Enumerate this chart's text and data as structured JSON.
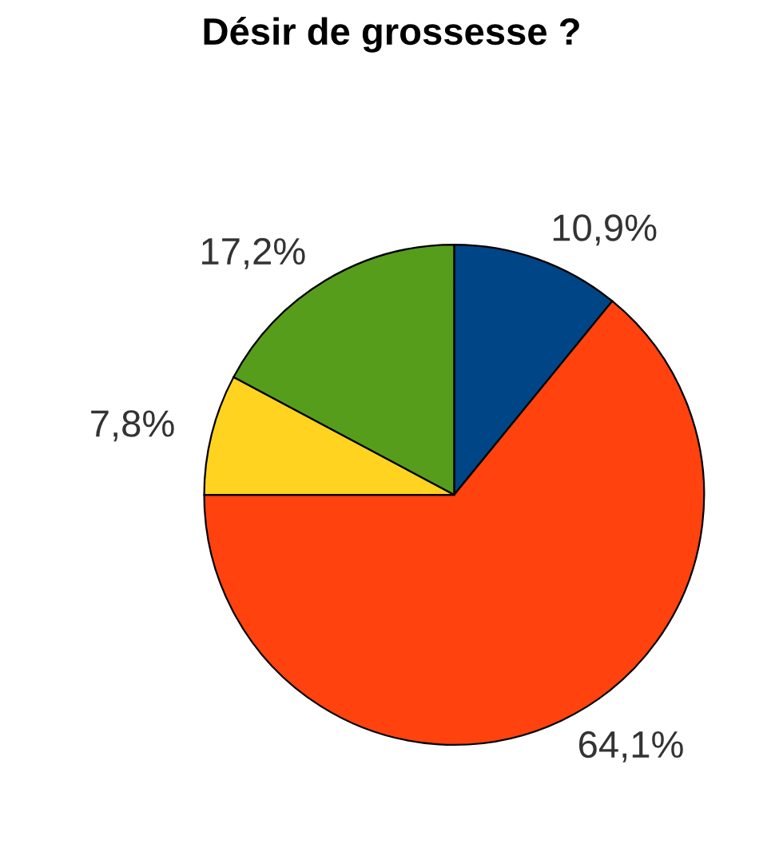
{
  "chart_data": {
    "type": "pie",
    "title": "Désir de grossesse ?",
    "categories": [
      null,
      null,
      null,
      null
    ],
    "values": [
      10.9,
      64.1,
      7.8,
      17.2
    ],
    "colors": [
      "#004586",
      "#ff420e",
      "#ffd320",
      "#579d1c"
    ],
    "value_labels": [
      "10,9%",
      "64,1%",
      "7,8%",
      "17,2%"
    ],
    "legend": false
  }
}
